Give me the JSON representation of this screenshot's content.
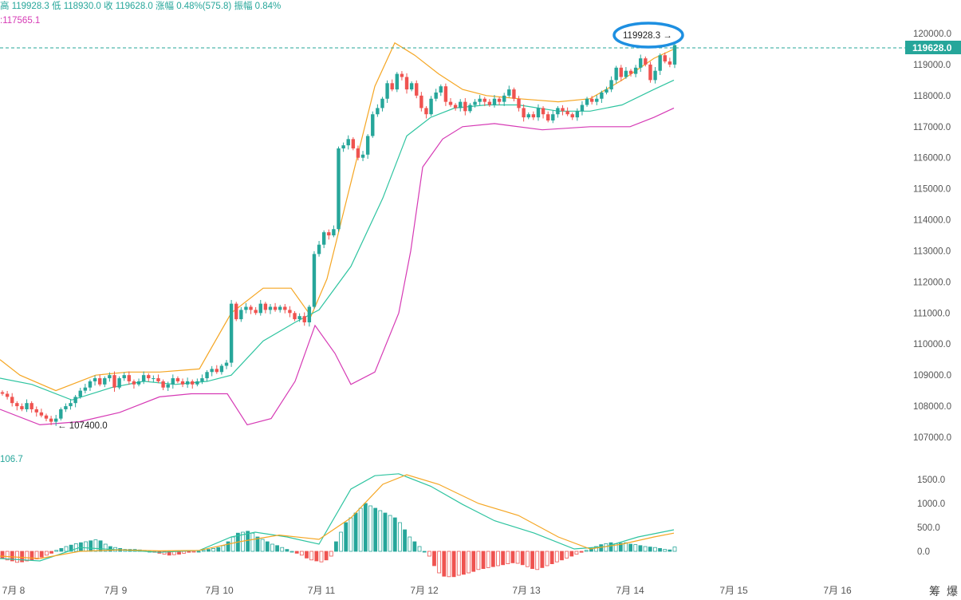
{
  "header": {
    "ohlc_line": "高 119928.3  低 118930.0  收 119628.0  涨幅 0.48%(575.8)  振幅 0.84%",
    "boll_lower_label": ":117565.1",
    "macd_label": "106.7"
  },
  "price_axis": {
    "ticks": [
      "120000.0",
      "119000.0",
      "118000.0",
      "117000.0",
      "116000.0",
      "115000.0",
      "114000.0",
      "113000.0",
      "112000.0",
      "111000.0",
      "110000.0",
      "109000.0",
      "108000.0",
      "107000.0"
    ],
    "last_price_tag": "119628.0"
  },
  "macd_axis": {
    "ticks": [
      "1500.0",
      "1000.0",
      "500.0",
      "0.0"
    ]
  },
  "x_axis": {
    "labels": [
      "7月 8",
      "7月 9",
      "7月 10",
      "7月 11",
      "7月 12",
      "7月 13",
      "7月 14",
      "7月 15",
      "7月 16"
    ]
  },
  "annotations": {
    "high_marker": "119928.3 →",
    "low_marker": "← 107400.0"
  },
  "bottom_right_icons": {
    "a": "筹",
    "b": "爆"
  },
  "colors": {
    "up": "#26a69a",
    "down": "#ef5350",
    "boll_mid": "#2ec4a0",
    "boll_upper": "#f5a623",
    "boll_lower": "#d63ab5",
    "macd_diff": "#2ec4a0",
    "macd_dea": "#f5a623",
    "highlight_circle": "#1d8fe1",
    "price_tag": "#26a69a"
  },
  "chart_data": {
    "type": "candlestick",
    "interval_hint": "hourly",
    "ylim": [
      106600,
      120400
    ],
    "last_close": 119628.0,
    "high": 119928.3,
    "low": 107400.0,
    "close_series": [
      108400,
      108300,
      108100,
      108000,
      107900,
      108100,
      107900,
      107800,
      107700,
      107600,
      107500,
      107600,
      107900,
      108000,
      108100,
      108300,
      108500,
      108600,
      108800,
      108900,
      108700,
      108900,
      109000,
      108600,
      108900,
      109000,
      108800,
      108700,
      108800,
      109000,
      108900,
      108900,
      108800,
      108600,
      108700,
      108900,
      108800,
      108700,
      108800,
      108700,
      108800,
      108900,
      109100,
      109200,
      109100,
      109300,
      109400,
      111300,
      110800,
      111100,
      111200,
      111100,
      111000,
      111300,
      111100,
      111200,
      111100,
      111200,
      111100,
      111000,
      110800,
      110900,
      110700,
      111200,
      112900,
      113200,
      113600,
      113500,
      113700,
      116300,
      116400,
      116600,
      116300,
      116000,
      116100,
      116700,
      117400,
      117600,
      117900,
      118400,
      118200,
      118700,
      118600,
      118200,
      118400,
      118000,
      117600,
      117400,
      117900,
      118100,
      118300,
      117800,
      117700,
      117600,
      117800,
      117500,
      117700,
      117800,
      117900,
      117800,
      117700,
      117900,
      117800,
      118000,
      118200,
      117900,
      117600,
      117300,
      117400,
      117300,
      117600,
      117400,
      117200,
      117400,
      117600,
      117500,
      117400,
      117300,
      117500,
      117700,
      117900,
      117800,
      117900,
      118100,
      118200,
      118500,
      118900,
      118600,
      118800,
      118700,
      118900,
      119200,
      119000,
      118500,
      118800,
      119300,
      119100,
      119000,
      119628
    ],
    "boll_upper": [
      [
        0,
        109500
      ],
      [
        25,
        109000
      ],
      [
        70,
        108500
      ],
      [
        120,
        109000
      ],
      [
        160,
        109100
      ],
      [
        200,
        109100
      ],
      [
        250,
        109200
      ],
      [
        290,
        111000
      ],
      [
        330,
        111800
      ],
      [
        365,
        111800
      ],
      [
        390,
        110900
      ],
      [
        410,
        112100
      ],
      [
        440,
        115200
      ],
      [
        470,
        118300
      ],
      [
        495,
        119700
      ],
      [
        520,
        119300
      ],
      [
        550,
        118700
      ],
      [
        580,
        118200
      ],
      [
        610,
        118000
      ],
      [
        650,
        117900
      ],
      [
        700,
        117800
      ],
      [
        740,
        117900
      ],
      [
        780,
        118500
      ],
      [
        820,
        119200
      ],
      [
        845,
        119500
      ]
    ],
    "boll_mid": [
      [
        0,
        108900
      ],
      [
        40,
        108700
      ],
      [
        90,
        108200
      ],
      [
        140,
        108600
      ],
      [
        180,
        108800
      ],
      [
        220,
        108700
      ],
      [
        260,
        108800
      ],
      [
        290,
        109000
      ],
      [
        330,
        110100
      ],
      [
        370,
        110700
      ],
      [
        400,
        111100
      ],
      [
        440,
        112500
      ],
      [
        480,
        114700
      ],
      [
        510,
        116700
      ],
      [
        540,
        117300
      ],
      [
        570,
        117600
      ],
      [
        610,
        117700
      ],
      [
        650,
        117700
      ],
      [
        700,
        117500
      ],
      [
        740,
        117500
      ],
      [
        780,
        117700
      ],
      [
        820,
        118200
      ],
      [
        845,
        118500
      ]
    ],
    "boll_lower": [
      [
        0,
        107900
      ],
      [
        50,
        107400
      ],
      [
        100,
        107500
      ],
      [
        150,
        107800
      ],
      [
        200,
        108300
      ],
      [
        240,
        108400
      ],
      [
        285,
        108400
      ],
      [
        310,
        107400
      ],
      [
        340,
        107600
      ],
      [
        370,
        108800
      ],
      [
        395,
        110600
      ],
      [
        420,
        109700
      ],
      [
        440,
        108700
      ],
      [
        470,
        109100
      ],
      [
        500,
        111000
      ],
      [
        515,
        113000
      ],
      [
        530,
        115700
      ],
      [
        555,
        116600
      ],
      [
        580,
        117000
      ],
      [
        620,
        117100
      ],
      [
        680,
        116900
      ],
      [
        740,
        117000
      ],
      [
        790,
        117000
      ],
      [
        820,
        117300
      ],
      [
        845,
        117600
      ]
    ],
    "macd": {
      "diff": [
        [
          0,
          -150
        ],
        [
          50,
          -200
        ],
        [
          100,
          80
        ],
        [
          150,
          30
        ],
        [
          200,
          -20
        ],
        [
          250,
          20
        ],
        [
          290,
          300
        ],
        [
          320,
          400
        ],
        [
          360,
          300
        ],
        [
          400,
          150
        ],
        [
          440,
          1300
        ],
        [
          470,
          1580
        ],
        [
          500,
          1620
        ],
        [
          540,
          1360
        ],
        [
          580,
          980
        ],
        [
          620,
          640
        ],
        [
          670,
          380
        ],
        [
          720,
          50
        ],
        [
          760,
          100
        ],
        [
          800,
          300
        ],
        [
          845,
          450
        ]
      ],
      "dea": [
        [
          0,
          -100
        ],
        [
          50,
          -150
        ],
        [
          100,
          0
        ],
        [
          150,
          30
        ],
        [
          200,
          10
        ],
        [
          250,
          20
        ],
        [
          300,
          200
        ],
        [
          350,
          340
        ],
        [
          400,
          250
        ],
        [
          440,
          700
        ],
        [
          480,
          1400
        ],
        [
          510,
          1600
        ],
        [
          550,
          1400
        ],
        [
          600,
          1000
        ],
        [
          650,
          750
        ],
        [
          700,
          300
        ],
        [
          740,
          50
        ],
        [
          780,
          150
        ],
        [
          820,
          300
        ],
        [
          845,
          380
        ]
      ],
      "hist": [
        -150,
        -180,
        -200,
        -230,
        -220,
        -200,
        -180,
        -160,
        -120,
        -80,
        -40,
        20,
        60,
        100,
        130,
        160,
        180,
        200,
        220,
        240,
        220,
        150,
        100,
        80,
        60,
        40,
        40,
        40,
        30,
        20,
        0,
        -20,
        -40,
        -60,
        -80,
        -70,
        -60,
        -40,
        -20,
        -10,
        0,
        20,
        40,
        60,
        80,
        120,
        200,
        300,
        380,
        400,
        420,
        380,
        300,
        250,
        200,
        150,
        120,
        80,
        40,
        0,
        -40,
        -80,
        -140,
        -180,
        -200,
        -220,
        -180,
        -100,
        200,
        400,
        600,
        700,
        800,
        900,
        1000,
        950,
        900,
        850,
        800,
        750,
        700,
        600,
        450,
        300,
        200,
        100,
        0,
        -100,
        -300,
        -450,
        -520,
        -530,
        -530,
        -500,
        -480,
        -450,
        -420,
        -380,
        -360,
        -340,
        -320,
        -300,
        -280,
        -260,
        -240,
        -250,
        -280,
        -320,
        -360,
        -380,
        -340,
        -300,
        -260,
        -220,
        -180,
        -140,
        -100,
        -60,
        -20,
        20,
        60,
        100,
        140,
        160,
        180,
        160,
        170,
        180,
        150,
        140,
        120,
        100,
        90,
        80,
        60,
        40,
        30,
        90
      ]
    }
  }
}
